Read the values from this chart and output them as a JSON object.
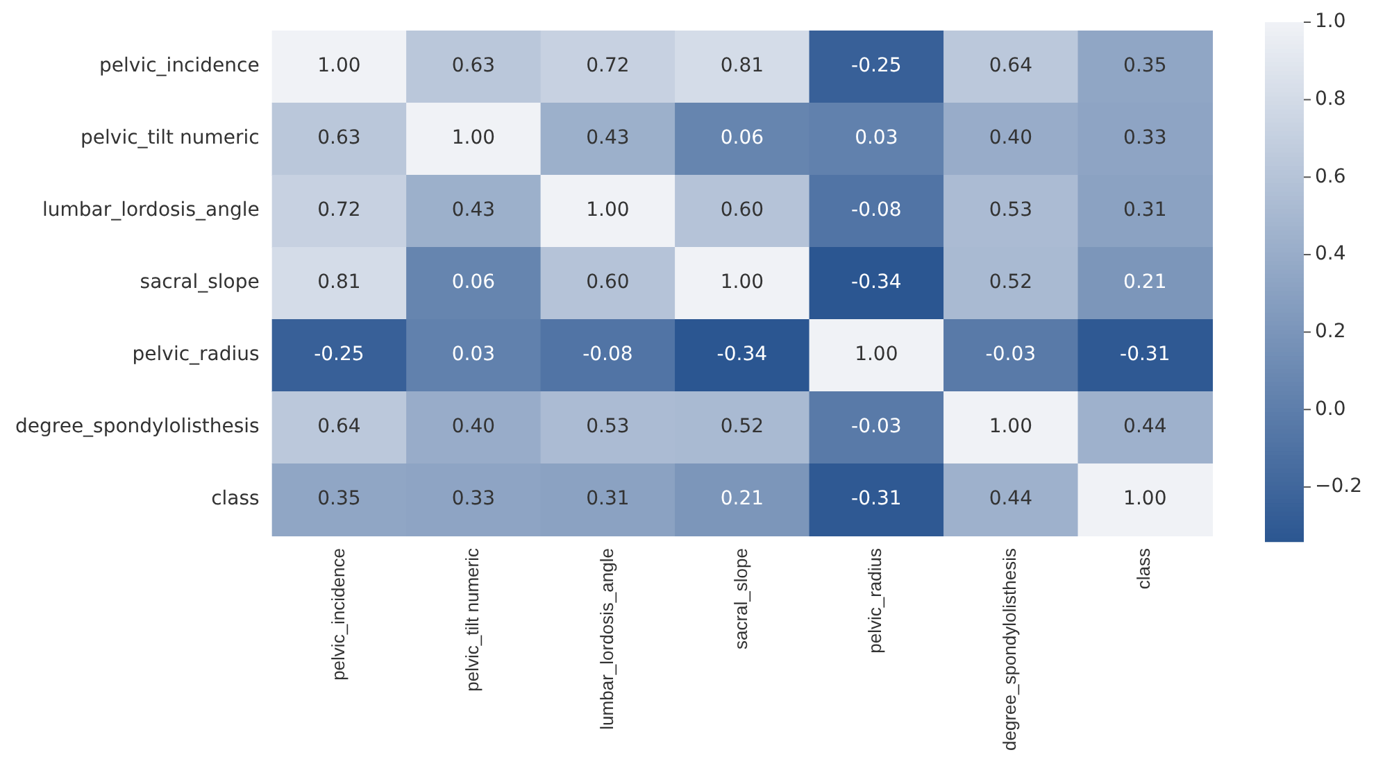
{
  "chart_data": {
    "type": "heatmap",
    "categories": [
      "pelvic_incidence",
      "pelvic_tilt numeric",
      "lumbar_lordosis_angle",
      "sacral_slope",
      "pelvic_radius",
      "degree_spondylolisthesis",
      "class"
    ],
    "y_categories": [
      "pelvic_incidence",
      "pelvic_tilt numeric",
      "lumbar_lordosis_angle",
      "sacral_slope",
      "pelvic_radius",
      "degree_spondylolisthesis",
      "class"
    ],
    "cells": [
      [
        1.0,
        0.63,
        0.72,
        0.81,
        -0.25,
        0.64,
        0.35
      ],
      [
        0.63,
        1.0,
        0.43,
        0.06,
        0.03,
        0.4,
        0.33
      ],
      [
        0.72,
        0.43,
        1.0,
        0.6,
        -0.08,
        0.53,
        0.31
      ],
      [
        0.81,
        0.06,
        0.6,
        1.0,
        -0.34,
        0.52,
        0.21
      ],
      [
        -0.25,
        0.03,
        -0.08,
        -0.34,
        1.0,
        -0.03,
        -0.31
      ],
      [
        0.64,
        0.4,
        0.53,
        0.52,
        -0.03,
        1.0,
        0.44
      ],
      [
        0.35,
        0.33,
        0.31,
        0.21,
        -0.31,
        0.44,
        1.0
      ]
    ],
    "cell_labels": [
      [
        "1.00",
        "0.63",
        "0.72",
        "0.81",
        "-0.25",
        "0.64",
        "0.35"
      ],
      [
        "0.63",
        "1.00",
        "0.43",
        "0.06",
        "0.03",
        "0.40",
        "0.33"
      ],
      [
        "0.72",
        "0.43",
        "1.00",
        "0.60",
        "-0.08",
        "0.53",
        "0.31"
      ],
      [
        "0.81",
        "0.06",
        "0.60",
        "1.00",
        "-0.34",
        "0.52",
        "0.21"
      ],
      [
        "-0.25",
        "0.03",
        "-0.08",
        "-0.34",
        "1.00",
        "-0.03",
        "-0.31"
      ],
      [
        "0.64",
        "0.40",
        "0.53",
        "0.52",
        "-0.03",
        "1.00",
        "0.44"
      ],
      [
        "0.35",
        "0.33",
        "0.31",
        "0.21",
        "-0.31",
        "0.44",
        "1.00"
      ]
    ],
    "colors": [
      "#2b5691",
      "#f0f2f6"
    ],
    "clim": [
      -0.34,
      1.0
    ],
    "cticks": [
      {
        "value": -0.2,
        "label": "−0.2"
      },
      {
        "value": 0.0,
        "label": "0.0"
      },
      {
        "value": 0.2,
        "label": "0.2"
      },
      {
        "value": 0.4,
        "label": "0.4"
      },
      {
        "value": 0.6,
        "label": "0.6"
      },
      {
        "value": 0.8,
        "label": "0.8"
      },
      {
        "value": 1.0,
        "label": "1.0"
      }
    ]
  }
}
